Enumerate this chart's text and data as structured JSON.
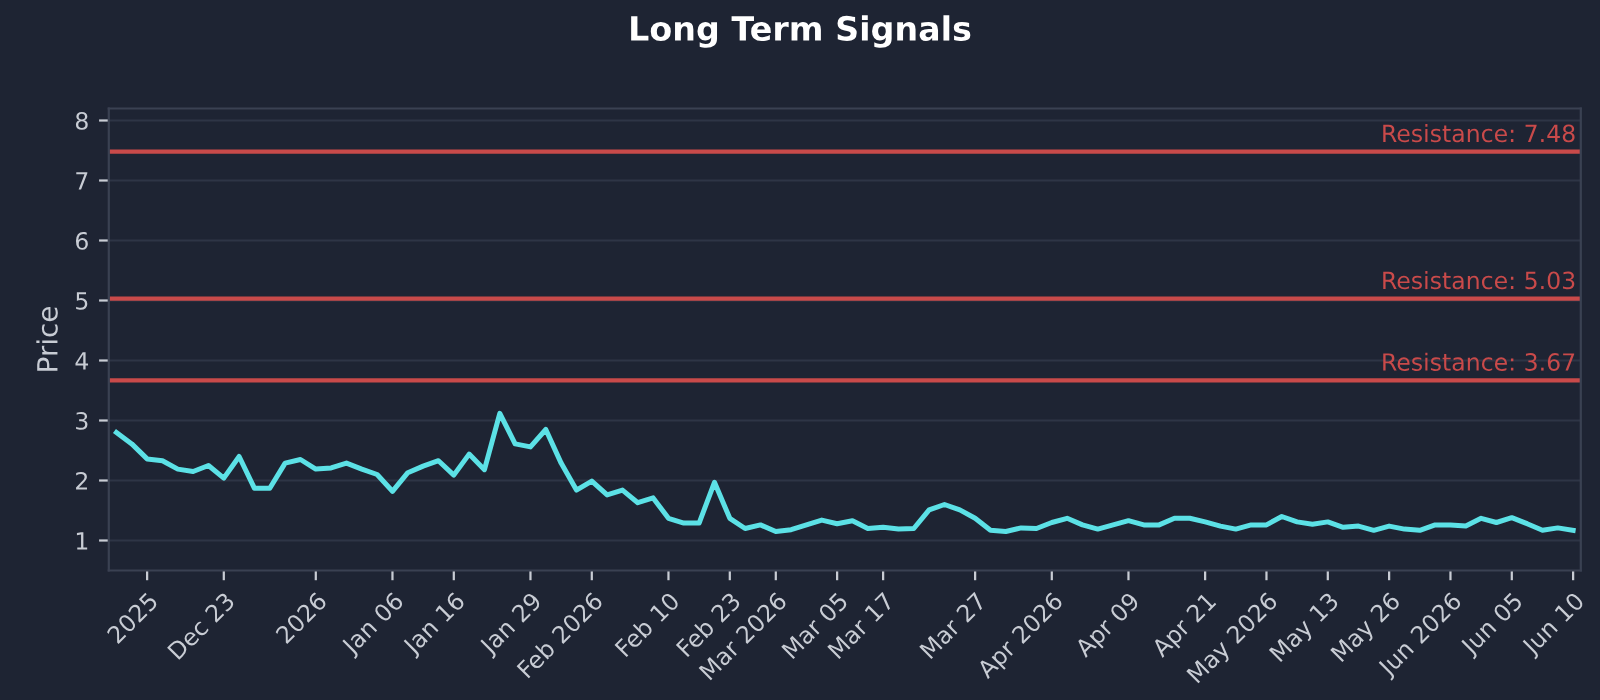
{
  "chart_data": {
    "type": "line",
    "title": "Long Term Signals",
    "ylabel": "Price",
    "categories": [
      null,
      null,
      "2025",
      null,
      null,
      null,
      null,
      "Dec 23",
      null,
      null,
      null,
      null,
      null,
      "2026",
      null,
      null,
      null,
      null,
      "Jan 06",
      null,
      null,
      null,
      "Jan 16",
      null,
      null,
      null,
      null,
      "Jan 29",
      null,
      null,
      null,
      "Feb 2026",
      null,
      null,
      null,
      null,
      "Feb 10",
      null,
      null,
      null,
      "Feb 23",
      null,
      null,
      "Mar 2026",
      null,
      null,
      null,
      "Mar 05",
      null,
      null,
      "Mar 17",
      null,
      null,
      null,
      null,
      null,
      "Mar 27",
      null,
      null,
      null,
      null,
      "Apr 2026",
      null,
      null,
      null,
      null,
      "Apr 09",
      null,
      null,
      null,
      null,
      "Apr 21",
      null,
      null,
      null,
      "May 2026",
      null,
      null,
      null,
      "May 13",
      null,
      null,
      null,
      "May 26",
      null,
      null,
      null,
      "Jun 2026",
      null,
      null,
      null,
      "Jun 05",
      null,
      null,
      null,
      "Jun 10"
    ],
    "series": [
      {
        "color": "#5ce1e6",
        "values": [
          2.8,
          2.61,
          2.36,
          2.33,
          2.19,
          2.15,
          2.25,
          2.04,
          2.4,
          1.87,
          1.87,
          2.29,
          2.35,
          2.19,
          2.21,
          2.29,
          2.19,
          2.1,
          1.82,
          2.13,
          2.24,
          2.33,
          2.09,
          2.44,
          2.18,
          3.12,
          2.61,
          2.56,
          2.85,
          2.29,
          1.84,
          1.99,
          1.76,
          1.84,
          1.63,
          1.71,
          1.37,
          1.29,
          1.29,
          1.97,
          1.37,
          1.2,
          1.26,
          1.15,
          1.18,
          1.26,
          1.34,
          1.28,
          1.33,
          1.2,
          1.22,
          1.19,
          1.2,
          1.51,
          1.6,
          1.51,
          1.37,
          1.17,
          1.15,
          1.21,
          1.2,
          1.3,
          1.37,
          1.26,
          1.19,
          1.26,
          1.33,
          1.26,
          1.26,
          1.37,
          1.37,
          1.31,
          1.24,
          1.19,
          1.26,
          1.26,
          1.4,
          1.31,
          1.27,
          1.31,
          1.22,
          1.24,
          1.17,
          1.24,
          1.19,
          1.17,
          1.26,
          1.26,
          1.24,
          1.37,
          1.3,
          1.38,
          1.28,
          1.17,
          1.21,
          1.17
        ]
      }
    ],
    "ylim": [
      0.5,
      8.2
    ],
    "yticks": [
      1,
      2,
      3,
      4,
      5,
      6,
      7,
      8
    ],
    "grid": "y",
    "ref_lines": [
      {
        "axis": "y",
        "value": 7.48,
        "label": "Resistance: 7.48",
        "color": "#c94a4a"
      },
      {
        "axis": "y",
        "value": 5.03,
        "label": "Resistance: 5.03",
        "color": "#c94a4a"
      },
      {
        "axis": "y",
        "value": 3.67,
        "label": "Resistance: 3.67",
        "color": "#c94a4a"
      }
    ]
  }
}
